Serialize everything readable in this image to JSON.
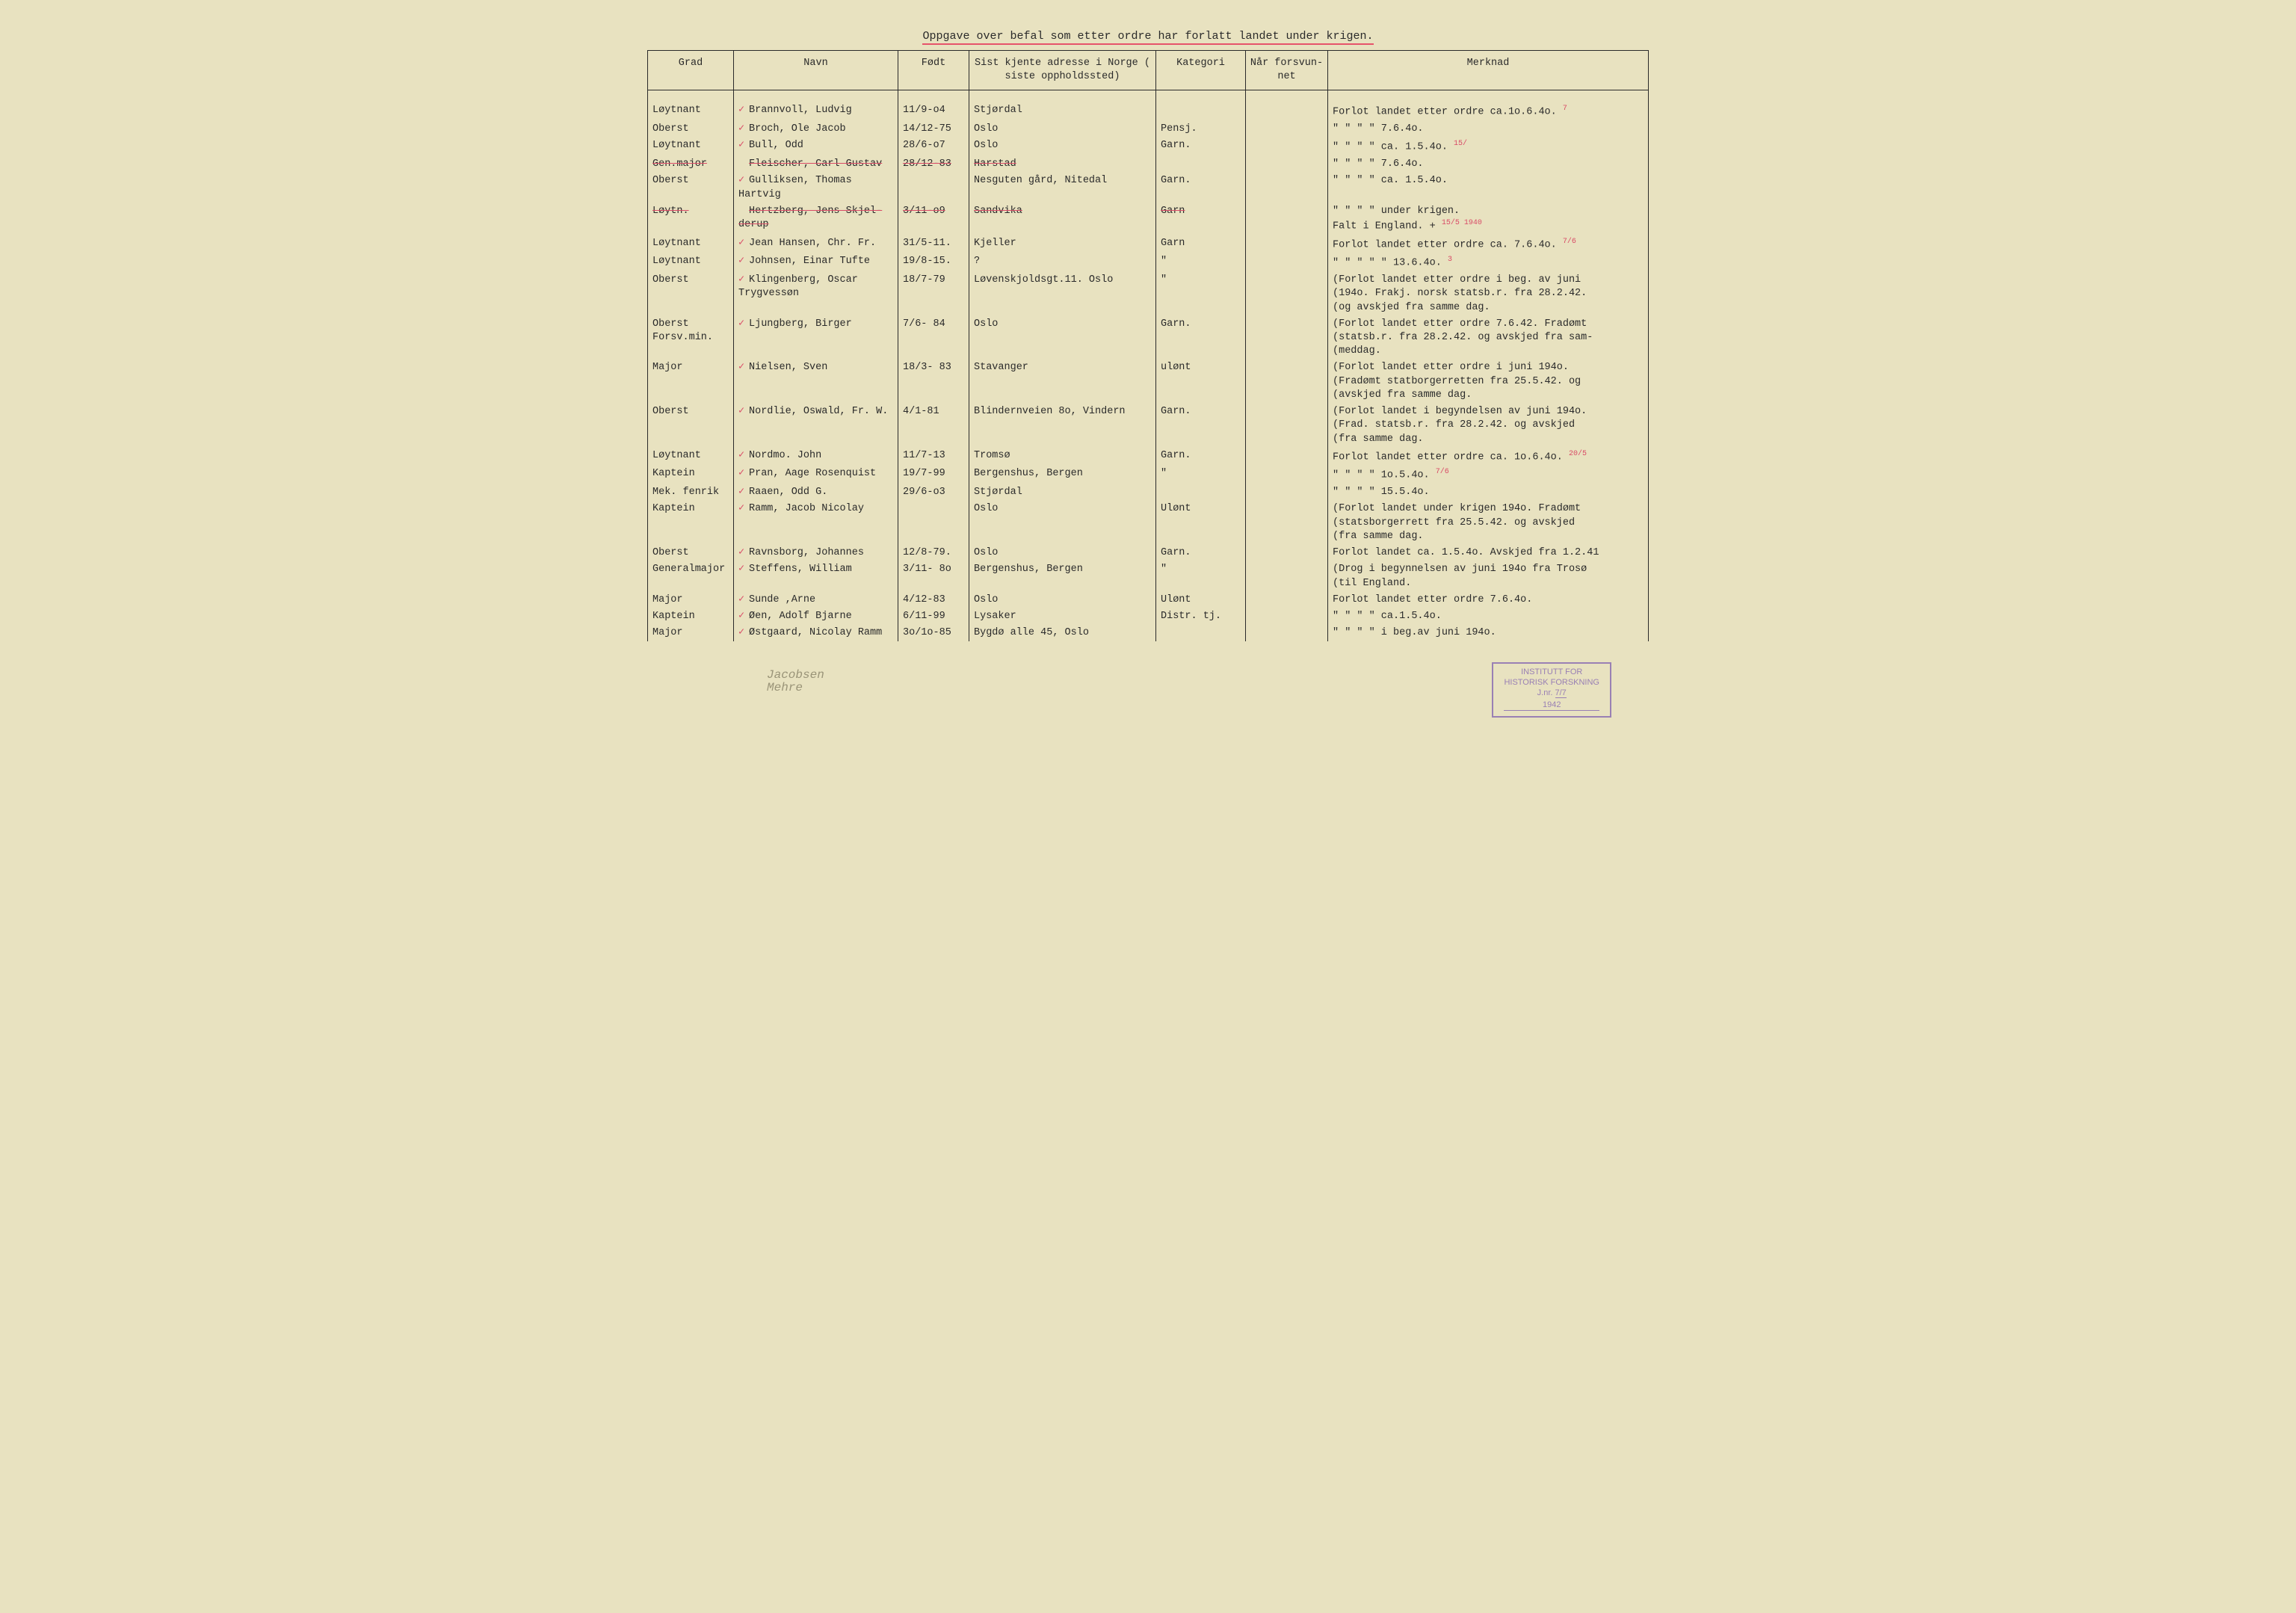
{
  "title": "Oppgave over befal som etter ordre har forlatt landet under krigen.",
  "columns": {
    "grad": "Grad",
    "navn": "Navn",
    "fodt": "Født",
    "adresse": "Sist kjente adresse i Norge ( siste oppholdssted)",
    "kategori": "Kategori",
    "forsvunnet": "Når forsvun-net",
    "merknad": "Merknad"
  },
  "rows": [
    {
      "grad": "Løytnant",
      "check": true,
      "navn": "Brannvoll, Ludvig",
      "fodt": "11/9-o4",
      "adresse": "Stjørdal",
      "kategori": "",
      "forsv": "",
      "merknad": "Forlot landet etter ordre ca.1o.6.4o.",
      "ann": "7"
    },
    {
      "grad": "Oberst",
      "check": true,
      "navn": "Broch, Ole Jacob",
      "fodt": "14/12-75",
      "adresse": "Oslo",
      "kategori": "Pensj.",
      "forsv": "",
      "merknad": "\"     \"     \"     \"   7.6.4o."
    },
    {
      "grad": "Løytnant",
      "check": true,
      "navn": "Bull, Odd",
      "fodt": "28/6-o7",
      "adresse": "Oslo",
      "kategori": "Garn.",
      "forsv": "",
      "merknad": "\"     \"     \"     \"  ca. 1.5.4o.",
      "ann": "15/"
    },
    {
      "grad": "Gen.major",
      "check": false,
      "struck": true,
      "navn": "Fleischer, Carl Gustav",
      "fodt": "28/12-83",
      "adresse": "Harstad",
      "kategori": "",
      "forsv": "",
      "merknad": "\"     \"     \"     \"   7.6.4o."
    },
    {
      "grad": "Oberst",
      "check": true,
      "navn": "Gulliksen, Thomas Hartvig",
      "fodt": "",
      "adresse": "Nesguten gård, Nitedal",
      "kategori": "Garn.",
      "forsv": "",
      "merknad": "\"     \"     \"     \"  ca. 1.5.4o.",
      "struckdate": "1.5"
    },
    {
      "grad": "Løytn.",
      "check": false,
      "struck": true,
      "navn": "Hertzberg, Jens Skjel-derup",
      "fodt": "3/11-o9",
      "adresse": "Sandvika",
      "kategori": "Garn",
      "katstruck": true,
      "forsv": "",
      "merknad": "\"     \"     \"     \" under krigen.\nFalt i England.  +",
      "ann": "15/5 1940"
    },
    {
      "grad": "Løytnant",
      "check": true,
      "navn": "Jean Hansen, Chr. Fr.",
      "fodt": "31/5-11.",
      "adresse": "Kjeller",
      "kategori": "Garn",
      "forsv": "",
      "merknad": "Forlot landet etter ordre ca. 7.6.4o.",
      "ann": "7/6"
    },
    {
      "grad": "Løytnant",
      "check": true,
      "navn": "Johnsen, Einar Tufte",
      "fodt": "19/8-15.",
      "adresse": "?",
      "kategori": "\"",
      "forsv": "",
      "merknad": "\"     \"     \"     \"   \" 13.6.4o.",
      "ann": "3"
    },
    {
      "grad": "Oberst",
      "check": true,
      "navn": "Klingenberg, Oscar Trygvessøn",
      "fodt": "18/7-79",
      "adresse": "Løvenskjoldsgt.11. Oslo",
      "kategori": "\"",
      "forsv": "",
      "merknad": "(Forlot landet etter ordre i beg. av juni\n(194o. Frakj. norsk statsb.r. fra 28.2.42.\n(og avskjed fra samme dag."
    },
    {
      "grad": "Oberst\nForsv.min.",
      "check": true,
      "navn": "Ljungberg, Birger",
      "fodt": "7/6- 84",
      "adresse": "Oslo",
      "kategori": "Garn.",
      "forsv": "",
      "merknad": "(Forlot landet etter ordre 7.6.42. Fradømt\n(statsb.r. fra 28.2.42. og avskjed fra sam-\n(meddag."
    },
    {
      "grad": "Major",
      "check": true,
      "navn": "Nielsen, Sven",
      "fodt": "18/3- 83",
      "adresse": "Stavanger",
      "kategori": "ulønt",
      "forsv": "",
      "merknad": "(Forlot landet etter ordre i juni 194o.\n(Fradømt statborgerretten fra 25.5.42. og\n(avskjed fra samme dag."
    },
    {
      "grad": "Oberst",
      "check": true,
      "navn": "Nordlie, Oswald, Fr. W.",
      "fodt": "4/1-81",
      "adresse": "Blindernveien 8o, Vindern",
      "kategori": "Garn.",
      "forsv": "",
      "merknad": "(Forlot landet i begyndelsen av juni 194o.\n(Frad. statsb.r. fra 28.2.42. og avskjed\n(fra samme dag."
    },
    {
      "grad": "Løytnant",
      "check": true,
      "navn": "Nordmo. John",
      "fodt": "11/7-13",
      "adresse": "Tromsø",
      "kategori": "Garn.",
      "forsv": "",
      "merknad": "Forlot landet etter ordre ca. 1o.6.4o.",
      "ann": "20/5"
    },
    {
      "grad": "Kaptein",
      "check": true,
      "navn": "Pran, Aage Rosenquist",
      "fodt": "19/7-99",
      "adresse": "Bergenshus, Bergen",
      "kategori": "\"",
      "forsv": "",
      "merknad": "\"     \"     \"     \"   1o.5.4o.",
      "ann": "7/6"
    },
    {
      "grad": "Mek. fenrik",
      "check": true,
      "navn": "Raaen, Odd G.",
      "fodt": "29/6-o3",
      "adresse": "Stjørdal",
      "kategori": "",
      "forsv": "",
      "merknad": "\"     \"     \"     \"   15.5.4o."
    },
    {
      "grad": "Kaptein",
      "check": true,
      "navn": "Ramm, Jacob Nicolay",
      "fodt": "",
      "adresse": "Oslo",
      "kategori": "Ulønt",
      "forsv": "",
      "merknad": "(Forlot landet under krigen 194o. Fradømt\n(statsborgerrett fra 25.5.42. og avskjed\n(fra samme dag."
    },
    {
      "grad": "Oberst",
      "check": true,
      "navn": "Ravnsborg, Johannes",
      "fodt": "12/8-79.",
      "adresse": "Oslo",
      "kategori": "Garn.",
      "forsv": "",
      "merknad": "Forlot landet ca. 1.5.4o. Avskjed fra 1.2.41"
    },
    {
      "grad": "Generalmajor",
      "check": true,
      "navn": "Steffens, William",
      "fodt": "3/11- 8o",
      "adresse": "Bergenshus, Bergen",
      "kategori": "\"",
      "forsv": "",
      "merknad": "(Drog i begynnelsen av juni 194o fra Trosø\n(til England."
    },
    {
      "grad": "Major",
      "check": true,
      "navn": "Sunde ,Arne",
      "fodt": "4/12-83",
      "adresse": "Oslo",
      "kategori": "Ulønt",
      "forsv": "",
      "merknad": "Forlot landet etter ordre 7.6.4o."
    },
    {
      "grad": "Kaptein",
      "check": true,
      "navn": "Øen, Adolf Bjarne",
      "fodt": "6/11-99",
      "adresse": "Lysaker",
      "kategori": "Distr. tj.",
      "forsv": "",
      "merknad": "\"     \"     \"     \"  ca.1.5.4o."
    },
    {
      "grad": "Major",
      "check": true,
      "navn": "Østgaard, Nicolay Ramm",
      "fodt": "3o/1o-85",
      "adresse": "Bygdø alle 45, Oslo",
      "kategori": "",
      "forsv": "",
      "merknad": "\"     \"     \"     \" i beg.av juni 194o."
    }
  ],
  "pencil": "Jacobsen\nMehre",
  "stamp": {
    "line1": "INSTITUTT FOR",
    "line2": "HISTORISK FORSKNING",
    "jnr_label": "J.nr.",
    "jnr": "7/7",
    "year": "1942"
  }
}
